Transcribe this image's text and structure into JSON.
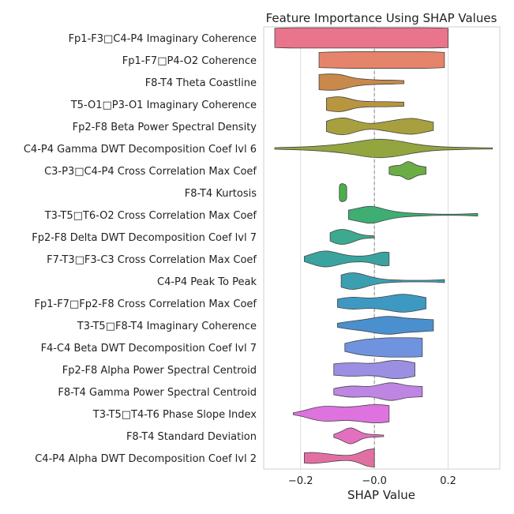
{
  "chart_data": {
    "type": "violin",
    "title": "Feature Importance Using SHAP Values",
    "xlabel": "SHAP Value",
    "ylabel": "",
    "xlim": [
      -0.3,
      0.34
    ],
    "xticks": [
      -0.2,
      -0.0,
      0.2
    ],
    "xtick_labels": [
      "−0.2",
      "−0.0",
      "0.2"
    ],
    "grid": true,
    "zero_line": "dashed",
    "features": [
      {
        "label": "Fp1-F3□C4-P4 Imaginary Coherence",
        "color": "#E8758B",
        "min": -0.27,
        "max": 0.2,
        "width": [
          0.95,
          1,
          1,
          1,
          1,
          1,
          1,
          1,
          1,
          1,
          1,
          0.95
        ]
      },
      {
        "label": "Fp1-F7□P4-O2 Coherence",
        "color": "#E5846A",
        "min": -0.15,
        "max": 0.19,
        "width": [
          0.75,
          0.78,
          0.8,
          0.82,
          0.82,
          0.82,
          0.82,
          0.82,
          0.82,
          0.82,
          0.8,
          0.75
        ]
      },
      {
        "label": "F8-T4 Theta Coastline",
        "color": "#C8894A",
        "min": -0.15,
        "max": 0.08,
        "width": [
          0.75,
          0.8,
          0.8,
          0.72,
          0.5,
          0.35,
          0.28,
          0.24,
          0.2,
          0.2,
          0.18,
          0.15
        ]
      },
      {
        "label": "T5-O1□P3-O1 Imaginary Coherence",
        "color": "#B8953E",
        "min": -0.13,
        "max": 0.08,
        "width": [
          0.6,
          0.72,
          0.75,
          0.6,
          0.4,
          0.3,
          0.27,
          0.25,
          0.25,
          0.25,
          0.22,
          0.2
        ]
      },
      {
        "label": "Fp2-F8 Beta Power Spectral Density",
        "color": "#A8A03E",
        "min": -0.13,
        "max": 0.16,
        "width": [
          0.5,
          0.8,
          0.85,
          0.55,
          0.3,
          0.28,
          0.45,
          0.6,
          0.75,
          0.8,
          0.6,
          0.4
        ]
      },
      {
        "label": "C4-P4 Gamma DWT Decomposition Coef lvl 6",
        "color": "#93A53E",
        "min": -0.27,
        "max": 0.32,
        "width": [
          0.08,
          0.12,
          0.2,
          0.35,
          0.6,
          0.95,
          0.85,
          0.45,
          0.2,
          0.12,
          0.08,
          0.06
        ]
      },
      {
        "label": "C3-P3□C4-P4 Cross Correlation Max Coef",
        "color": "#6BAC44",
        "min": 0.04,
        "max": 0.14,
        "width": [
          0.35,
          0.45,
          0.5,
          0.5,
          0.6,
          0.85,
          0.9,
          0.75,
          0.55,
          0.45,
          0.4,
          0.35
        ]
      },
      {
        "label": "F8-T4 Kurtosis",
        "color": "#4CAE4C",
        "min": -0.095,
        "max": -0.075,
        "width": [
          0.6,
          0.8,
          0.85,
          0.85,
          0.9,
          0.9,
          0.85,
          0.85,
          0.8,
          0.8,
          0.7,
          0.55
        ]
      },
      {
        "label": "T3-T5□T6-O2 Cross Correlation Max Coef",
        "color": "#3EAE73",
        "min": -0.07,
        "max": 0.28,
        "width": [
          0.45,
          0.7,
          0.9,
          0.55,
          0.3,
          0.18,
          0.12,
          0.08,
          0.06,
          0.06,
          0.08,
          0.12
        ]
      },
      {
        "label": "Fp2-F8 Delta DWT Decomposition Coef lvl 7",
        "color": "#3DA98F",
        "min": -0.12,
        "max": 0.0,
        "width": [
          0.4,
          0.6,
          0.7,
          0.75,
          0.7,
          0.6,
          0.45,
          0.3,
          0.2,
          0.15,
          0.12,
          0.1
        ]
      },
      {
        "label": "F7-T3□F3-C3 Cross Correlation Max Coef",
        "color": "#3AA39F",
        "min": -0.19,
        "max": 0.04,
        "width": [
          0.25,
          0.5,
          0.75,
          0.8,
          0.65,
          0.45,
          0.32,
          0.28,
          0.3,
          0.45,
          0.7,
          0.65
        ]
      },
      {
        "label": "C4-P4 Peak To Peak",
        "color": "#3C9FB1",
        "min": -0.09,
        "max": 0.19,
        "width": [
          0.6,
          0.85,
          0.75,
          0.45,
          0.25,
          0.14,
          0.1,
          0.08,
          0.08,
          0.08,
          0.1,
          0.15
        ]
      },
      {
        "label": "Fp1-F7□Fp2-F8 Cross Correlation Max Coef",
        "color": "#3E99C2",
        "min": -0.1,
        "max": 0.14,
        "width": [
          0.4,
          0.55,
          0.6,
          0.55,
          0.5,
          0.55,
          0.65,
          0.8,
          0.9,
          0.85,
          0.7,
          0.55
        ]
      },
      {
        "label": "T3-T5□F8-T4 Imaginary Coherence",
        "color": "#4A90CF",
        "min": -0.1,
        "max": 0.16,
        "width": [
          0.2,
          0.35,
          0.45,
          0.55,
          0.7,
          0.85,
          0.9,
          0.8,
          0.7,
          0.65,
          0.6,
          0.55
        ]
      },
      {
        "label": "F4-C4 Beta DWT Decomposition Coef lvl 7",
        "color": "#7093E0",
        "min": -0.08,
        "max": 0.13,
        "width": [
          0.4,
          0.55,
          0.7,
          0.8,
          0.85,
          0.9,
          0.95,
          0.95,
          0.95,
          0.95,
          0.95,
          0.9
        ]
      },
      {
        "label": "Fp2-F8 Alpha Power Spectral Centroid",
        "color": "#9A8FE3",
        "min": -0.11,
        "max": 0.11,
        "width": [
          0.55,
          0.62,
          0.66,
          0.66,
          0.62,
          0.6,
          0.65,
          0.8,
          0.9,
          0.9,
          0.8,
          0.65
        ]
      },
      {
        "label": "F8-T4 Gamma Power Spectral Centroid",
        "color": "#BE85E3",
        "min": -0.11,
        "max": 0.13,
        "width": [
          0.3,
          0.45,
          0.55,
          0.55,
          0.5,
          0.55,
          0.75,
          0.9,
          0.8,
          0.6,
          0.55,
          0.5
        ]
      },
      {
        "label": "T3-T5□T4-T6 Phase Slope Index",
        "color": "#DE72DE",
        "min": -0.22,
        "max": 0.04,
        "width": [
          0.1,
          0.25,
          0.5,
          0.7,
          0.75,
          0.7,
          0.65,
          0.7,
          0.8,
          0.9,
          0.9,
          0.8
        ]
      },
      {
        "label": "F8-T4 Standard Deviation",
        "color": "#E370BF",
        "min": -0.11,
        "max": 0.025,
        "width": [
          0.15,
          0.3,
          0.5,
          0.75,
          0.8,
          0.6,
          0.35,
          0.2,
          0.15,
          0.12,
          0.1,
          0.08
        ]
      },
      {
        "label": "C4-P4 Alpha DWT Decomposition Coef lvl 2",
        "color": "#E26FA1",
        "min": -0.19,
        "max": 0.0,
        "width": [
          0.5,
          0.55,
          0.52,
          0.45,
          0.38,
          0.3,
          0.25,
          0.25,
          0.35,
          0.6,
          0.85,
          0.9
        ]
      }
    ]
  }
}
